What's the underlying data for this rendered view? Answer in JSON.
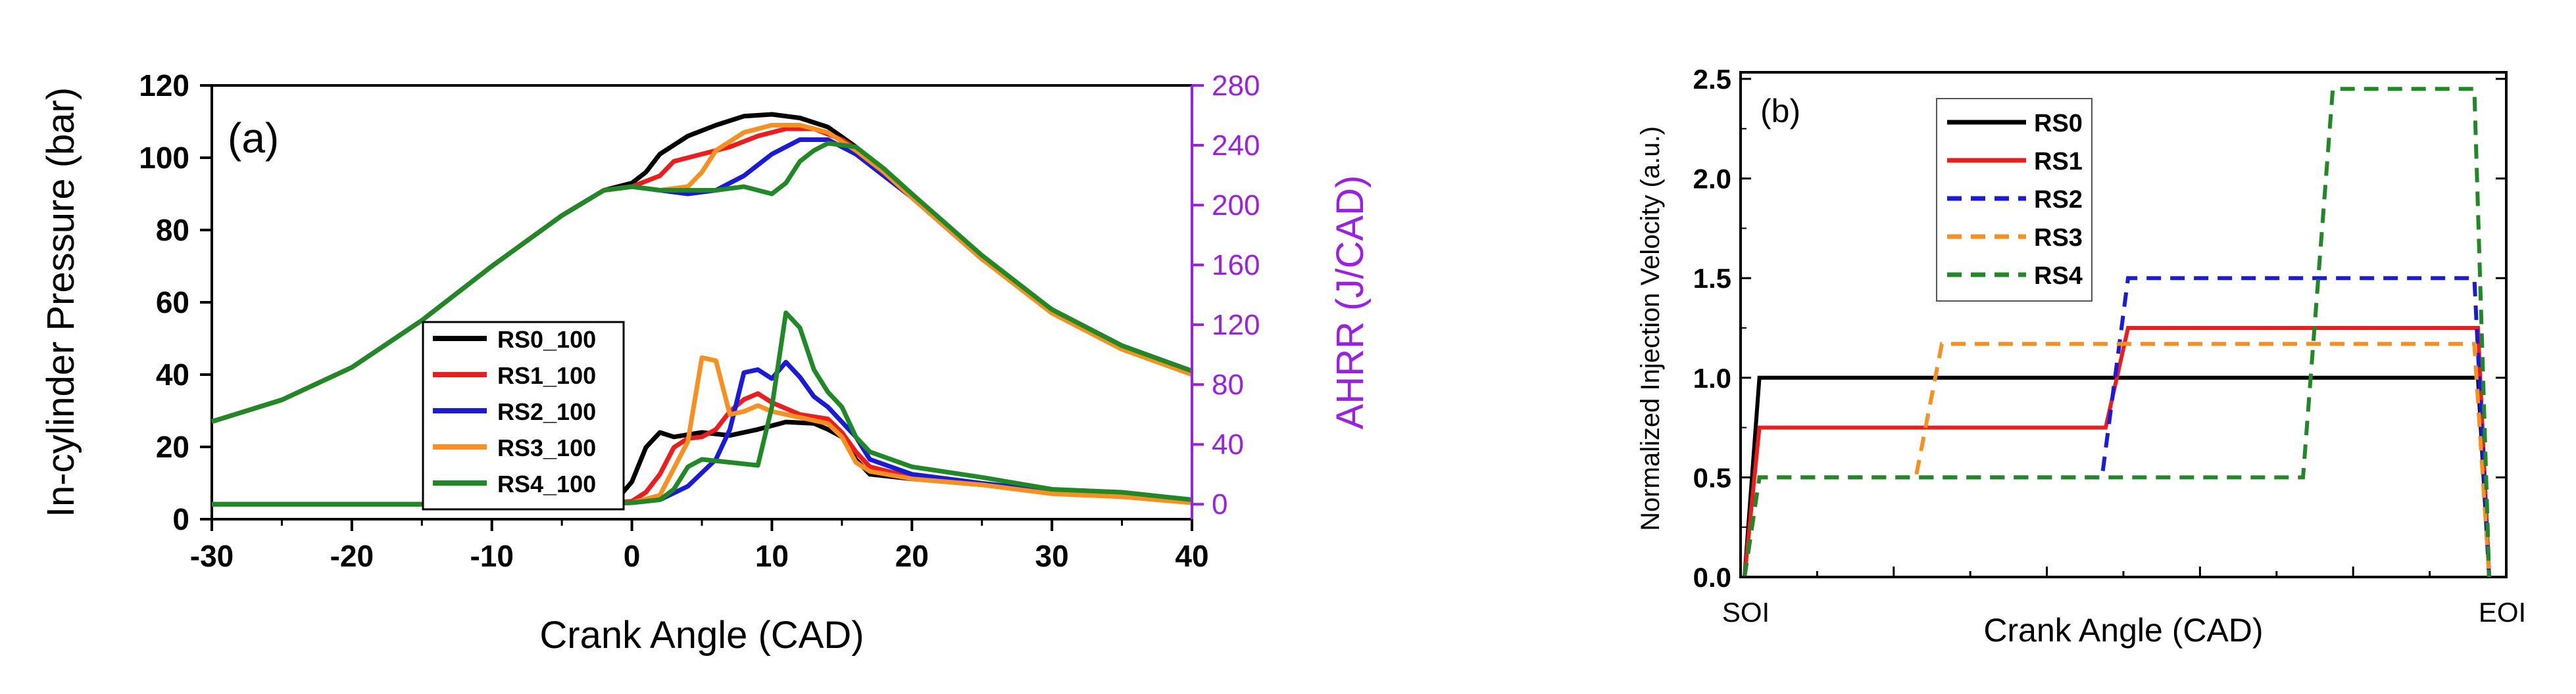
{
  "chart_data": [
    {
      "type": "line",
      "panel_label": "(a)",
      "xlabel": "Crank Angle (CAD)",
      "ylabel": "In-cylinder Pressure (bar)",
      "y2label": "AHRR (J/CAD)",
      "xlim": [
        -30,
        40
      ],
      "ylim": [
        0,
        120
      ],
      "y2lim": [
        -10,
        280
      ],
      "x_ticks": [
        -30,
        -20,
        -10,
        0,
        10,
        20,
        30,
        40
      ],
      "y_ticks": [
        0,
        20,
        40,
        60,
        80,
        100,
        120
      ],
      "y2_ticks": [
        0,
        40,
        80,
        120,
        160,
        200,
        240,
        280
      ],
      "legend_position": "center-left",
      "colors": {
        "RS0_100": "#000000",
        "RS1_100": "#ee1c1c",
        "RS2_100": "#1a1adc",
        "RS3_100": "#f7901e",
        "RS4_100": "#1f8a25",
        "secondary_axis": "#9b1fe8"
      },
      "series_pressure": [
        {
          "name": "RS0_100",
          "color": "#000000",
          "points": [
            [
              -30,
              27
            ],
            [
              -25,
              33
            ],
            [
              -20,
              42
            ],
            [
              -15,
              55
            ],
            [
              -10,
              70
            ],
            [
              -5,
              84
            ],
            [
              -2,
              91
            ],
            [
              0,
              93
            ],
            [
              1,
              96
            ],
            [
              2,
              101
            ],
            [
              4,
              106
            ],
            [
              6,
              109
            ],
            [
              8,
              111.5
            ],
            [
              10,
              112
            ],
            [
              12,
              111
            ],
            [
              14,
              108.5
            ],
            [
              16,
              103
            ],
            [
              18,
              96
            ],
            [
              20,
              89
            ],
            [
              25,
              72
            ],
            [
              30,
              58
            ],
            [
              35,
              48
            ],
            [
              40,
              41
            ]
          ]
        },
        {
          "name": "RS1_100",
          "color": "#ee1c1c",
          "points": [
            [
              -30,
              27
            ],
            [
              -25,
              33
            ],
            [
              -20,
              42
            ],
            [
              -15,
              55
            ],
            [
              -10,
              70
            ],
            [
              -5,
              84
            ],
            [
              -2,
              91
            ],
            [
              0,
              92
            ],
            [
              2,
              95
            ],
            [
              3,
              99
            ],
            [
              5,
              101
            ],
            [
              7,
              103
            ],
            [
              9,
              106
            ],
            [
              11,
              108
            ],
            [
              13,
              108
            ],
            [
              15,
              105
            ],
            [
              17,
              100
            ],
            [
              19,
              93
            ],
            [
              20,
              89
            ],
            [
              25,
              72
            ],
            [
              30,
              58
            ],
            [
              35,
              48
            ],
            [
              40,
              41
            ]
          ]
        },
        {
          "name": "RS2_100",
          "color": "#1a1adc",
          "points": [
            [
              -30,
              27
            ],
            [
              -25,
              33
            ],
            [
              -20,
              42
            ],
            [
              -15,
              55
            ],
            [
              -10,
              70
            ],
            [
              -5,
              84
            ],
            [
              -2,
              91
            ],
            [
              0,
              92
            ],
            [
              2,
              91
            ],
            [
              4,
              90
            ],
            [
              6,
              91
            ],
            [
              8,
              95
            ],
            [
              10,
              101
            ],
            [
              12,
              105
            ],
            [
              14,
              105
            ],
            [
              16,
              101
            ],
            [
              18,
              95
            ],
            [
              20,
              89
            ],
            [
              25,
              72
            ],
            [
              30,
              58
            ],
            [
              35,
              48
            ],
            [
              40,
              41
            ]
          ]
        },
        {
          "name": "RS3_100",
          "color": "#f7901e",
          "points": [
            [
              -30,
              27
            ],
            [
              -25,
              33
            ],
            [
              -20,
              42
            ],
            [
              -15,
              55
            ],
            [
              -10,
              70
            ],
            [
              -5,
              84
            ],
            [
              -2,
              91
            ],
            [
              0,
              92
            ],
            [
              2,
              91
            ],
            [
              4,
              92
            ],
            [
              5,
              96
            ],
            [
              6,
              102
            ],
            [
              8,
              107
            ],
            [
              10,
              109
            ],
            [
              12,
              109
            ],
            [
              14,
              107
            ],
            [
              16,
              102
            ],
            [
              18,
              96
            ],
            [
              20,
              89
            ],
            [
              25,
              72
            ],
            [
              30,
              57
            ],
            [
              35,
              47
            ],
            [
              40,
              40
            ]
          ]
        },
        {
          "name": "RS4_100",
          "color": "#1f8a25",
          "points": [
            [
              -30,
              27
            ],
            [
              -25,
              33
            ],
            [
              -20,
              42
            ],
            [
              -15,
              55
            ],
            [
              -10,
              70
            ],
            [
              -5,
              84
            ],
            [
              -2,
              91
            ],
            [
              0,
              92
            ],
            [
              2,
              91
            ],
            [
              4,
              91
            ],
            [
              6,
              91
            ],
            [
              8,
              92
            ],
            [
              9,
              91
            ],
            [
              10,
              90
            ],
            [
              11,
              93
            ],
            [
              12,
              99
            ],
            [
              13,
              102
            ],
            [
              14,
              104
            ],
            [
              16,
              103
            ],
            [
              18,
              97
            ],
            [
              20,
              90
            ],
            [
              25,
              73
            ],
            [
              30,
              58
            ],
            [
              35,
              48
            ],
            [
              40,
              41
            ]
          ]
        }
      ],
      "series_ahrr": [
        {
          "name": "RS0_100",
          "color": "#000000",
          "points": [
            [
              -30,
              0
            ],
            [
              -3,
              0
            ],
            [
              -1,
              4
            ],
            [
              0,
              15
            ],
            [
              1,
              38
            ],
            [
              2,
              48
            ],
            [
              3,
              45
            ],
            [
              5,
              48
            ],
            [
              7,
              46
            ],
            [
              9,
              50
            ],
            [
              11,
              55
            ],
            [
              13,
              54
            ],
            [
              14,
              50
            ],
            [
              15,
              45
            ],
            [
              16,
              30
            ],
            [
              17,
              20
            ],
            [
              20,
              17
            ],
            [
              25,
              13
            ],
            [
              30,
              8
            ],
            [
              35,
              6
            ],
            [
              40,
              2
            ]
          ]
        },
        {
          "name": "RS1_100",
          "color": "#ee1c1c",
          "points": [
            [
              -30,
              0
            ],
            [
              -3,
              0
            ],
            [
              0,
              2
            ],
            [
              1,
              8
            ],
            [
              2,
              20
            ],
            [
              3,
              38
            ],
            [
              4,
              44
            ],
            [
              5,
              45
            ],
            [
              6,
              50
            ],
            [
              7,
              62
            ],
            [
              8,
              70
            ],
            [
              9,
              74
            ],
            [
              10,
              68
            ],
            [
              12,
              60
            ],
            [
              14,
              57
            ],
            [
              15,
              48
            ],
            [
              16,
              35
            ],
            [
              17,
              25
            ],
            [
              20,
              18
            ],
            [
              25,
              13
            ],
            [
              30,
              8
            ],
            [
              35,
              6
            ],
            [
              40,
              2
            ]
          ]
        },
        {
          "name": "RS2_100",
          "color": "#1a1adc",
          "points": [
            [
              -30,
              0
            ],
            [
              -3,
              0
            ],
            [
              0,
              1
            ],
            [
              2,
              3
            ],
            [
              4,
              12
            ],
            [
              6,
              30
            ],
            [
              7,
              50
            ],
            [
              8,
              88
            ],
            [
              9,
              90
            ],
            [
              10,
              84
            ],
            [
              11,
              95
            ],
            [
              12,
              85
            ],
            [
              13,
              72
            ],
            [
              14,
              65
            ],
            [
              15,
              55
            ],
            [
              16,
              45
            ],
            [
              17,
              30
            ],
            [
              20,
              20
            ],
            [
              25,
              14
            ],
            [
              30,
              9
            ],
            [
              35,
              6
            ],
            [
              40,
              2
            ]
          ]
        },
        {
          "name": "RS3_100",
          "color": "#f7901e",
          "points": [
            [
              -30,
              0
            ],
            [
              -3,
              0
            ],
            [
              0,
              1
            ],
            [
              2,
              6
            ],
            [
              4,
              42
            ],
            [
              5,
              98
            ],
            [
              6,
              96
            ],
            [
              7,
              60
            ],
            [
              8,
              62
            ],
            [
              9,
              66
            ],
            [
              10,
              62
            ],
            [
              12,
              58
            ],
            [
              14,
              54
            ],
            [
              15,
              45
            ],
            [
              16,
              28
            ],
            [
              17,
              22
            ],
            [
              20,
              17
            ],
            [
              25,
              13
            ],
            [
              30,
              7
            ],
            [
              35,
              5
            ],
            [
              40,
              1
            ]
          ]
        },
        {
          "name": "RS4_100",
          "color": "#1f8a25",
          "points": [
            [
              -30,
              0
            ],
            [
              -3,
              0
            ],
            [
              0,
              1
            ],
            [
              2,
              3
            ],
            [
              3,
              10
            ],
            [
              4,
              25
            ],
            [
              5,
              30
            ],
            [
              7,
              28
            ],
            [
              9,
              26
            ],
            [
              10,
              65
            ],
            [
              11,
              128
            ],
            [
              12,
              118
            ],
            [
              13,
              90
            ],
            [
              14,
              75
            ],
            [
              15,
              65
            ],
            [
              16,
              45
            ],
            [
              17,
              35
            ],
            [
              20,
              25
            ],
            [
              25,
              18
            ],
            [
              30,
              10
            ],
            [
              35,
              8
            ],
            [
              40,
              3
            ]
          ]
        }
      ]
    },
    {
      "type": "line",
      "panel_label": "(b)",
      "xlabel": "Crank Angle (CAD)",
      "ylabel": "Normalized Injection Velocity (a.u.)",
      "xlim": [
        0,
        100
      ],
      "ylim": [
        0,
        2.5
      ],
      "x_tick_labels": [
        "SOI",
        "EOI"
      ],
      "y_ticks": [
        0.0,
        0.5,
        1.0,
        1.5,
        2.0,
        2.5
      ],
      "legend_position": "top-left",
      "series": [
        {
          "name": "RS0",
          "color": "#000000",
          "dash": "solid",
          "points": [
            [
              0,
              0
            ],
            [
              2,
              1.0
            ],
            [
              98.5,
              1.0
            ],
            [
              100,
              0
            ]
          ]
        },
        {
          "name": "RS1",
          "color": "#ee1c1c",
          "dash": "solid",
          "points": [
            [
              0,
              0
            ],
            [
              2,
              0.75
            ],
            [
              48.5,
              0.75
            ],
            [
              51.5,
              1.25
            ],
            [
              98.5,
              1.25
            ],
            [
              100,
              0
            ]
          ]
        },
        {
          "name": "RS2",
          "color": "#1a1adc",
          "dash": "dashed",
          "points": [
            [
              0,
              0
            ],
            [
              2,
              0.5
            ],
            [
              48,
              0.5
            ],
            [
              51.5,
              1.5
            ],
            [
              98,
              1.5
            ],
            [
              100,
              0
            ]
          ]
        },
        {
          "name": "RS3",
          "color": "#f7901e",
          "dash": "dashed",
          "points": [
            [
              0,
              0
            ],
            [
              2,
              0.5
            ],
            [
              23,
              0.5
            ],
            [
              26.5,
              1.17
            ],
            [
              98,
              1.17
            ],
            [
              100,
              0
            ]
          ]
        },
        {
          "name": "RS4",
          "color": "#1f8a25",
          "dash": "dashed",
          "points": [
            [
              0,
              0
            ],
            [
              2,
              0.5
            ],
            [
              75,
              0.5
            ],
            [
              79,
              2.45
            ],
            [
              98,
              2.45
            ],
            [
              100,
              0
            ]
          ]
        }
      ]
    }
  ]
}
